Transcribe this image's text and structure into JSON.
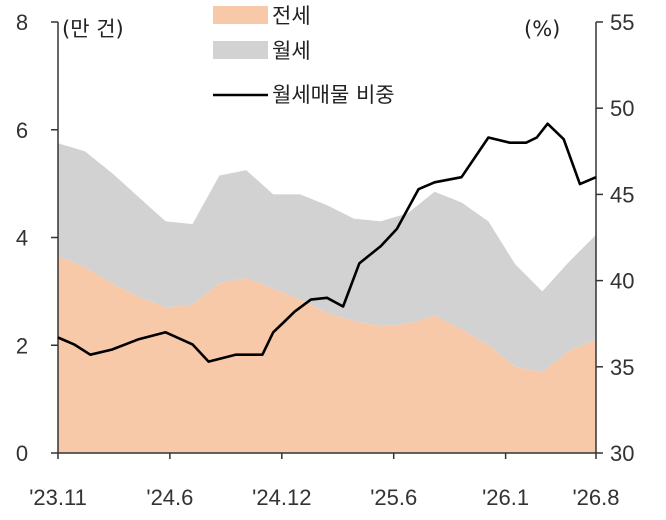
{
  "chart_data": {
    "type": "area",
    "y_left": {
      "unit": "(만 건)",
      "ylim": [
        0,
        8
      ],
      "ticks": [
        "0",
        "2",
        "4",
        "6",
        "8"
      ]
    },
    "y_right": {
      "unit": "(%)",
      "ylim": [
        30,
        55
      ],
      "ticks": [
        "30",
        "35",
        "40",
        "45",
        "50",
        "55"
      ]
    },
    "x_tick_labels": [
      "'23.11",
      "'24.6",
      "'24.12",
      "'25.6",
      "'26.1",
      "'26.8"
    ],
    "legend": {
      "placement": "top-center"
    },
    "colors": {
      "jeonse": "#f8c9a9",
      "wolse": "#d2d2d2",
      "ratio": "#000000",
      "axis": "#333333"
    },
    "series": [
      {
        "name": "전세",
        "kind": "stacked-area",
        "axis": "left",
        "x": [
          0,
          5,
          10,
          15,
          20,
          25,
          30,
          35,
          40,
          45,
          50,
          55,
          60,
          65,
          70,
          75,
          80,
          85,
          90,
          95,
          100
        ],
        "values": [
          3.65,
          3.45,
          3.15,
          2.9,
          2.7,
          2.75,
          3.15,
          3.25,
          3.05,
          2.85,
          2.6,
          2.45,
          2.35,
          2.4,
          2.55,
          2.3,
          2.0,
          1.6,
          1.5,
          1.9,
          2.1
        ]
      },
      {
        "name": "월세",
        "kind": "stacked-area",
        "axis": "left",
        "x": [
          0,
          5,
          10,
          15,
          20,
          25,
          30,
          35,
          40,
          45,
          50,
          55,
          60,
          65,
          70,
          75,
          80,
          85,
          90,
          95,
          100
        ],
        "values": [
          2.1,
          2.15,
          2.05,
          1.85,
          1.6,
          1.5,
          2.0,
          2.0,
          1.75,
          1.95,
          2.0,
          1.9,
          1.95,
          2.05,
          2.3,
          2.35,
          2.3,
          1.9,
          1.5,
          1.65,
          1.95
        ]
      },
      {
        "name": "월세매물 비중",
        "kind": "line",
        "axis": "right",
        "x": [
          0,
          3,
          6,
          10,
          15,
          20,
          25,
          28,
          33,
          38,
          40,
          42,
          44,
          47,
          50,
          53,
          56,
          60,
          63,
          67,
          70,
          75,
          80,
          84,
          87,
          89,
          91,
          94,
          97,
          100
        ],
        "values": [
          36.7,
          36.3,
          35.7,
          36.0,
          36.6,
          37.0,
          36.3,
          35.3,
          35.7,
          35.7,
          37.0,
          37.6,
          38.2,
          38.9,
          39.0,
          38.5,
          41.0,
          42.0,
          43.0,
          45.3,
          45.7,
          46.0,
          48.3,
          48.0,
          48.0,
          48.3,
          49.1,
          48.2,
          45.6,
          46.0
        ]
      }
    ]
  }
}
